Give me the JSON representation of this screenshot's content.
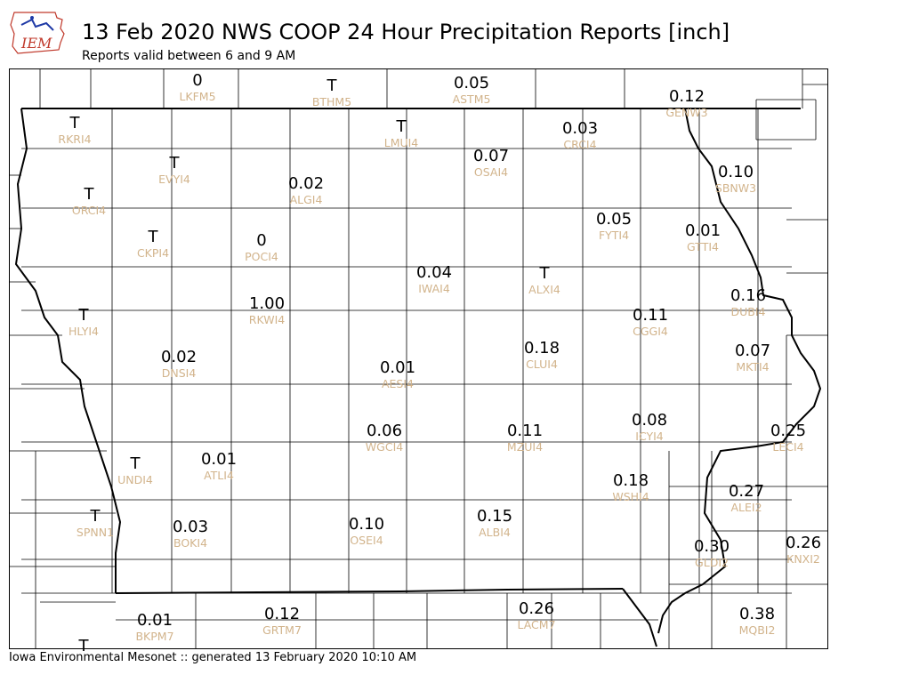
{
  "header": {
    "title": "13 Feb 2020 NWS COOP 24 Hour Precipitation Reports [inch]",
    "subtitle": "Reports valid between 6 and 9 AM",
    "logo_text": "IEM"
  },
  "footer": {
    "text": "Iowa Environmental Mesonet :: generated 13 February 2020 10:10 AM"
  },
  "colors": {
    "station_label": "#d2b48c",
    "value_text": "#000000",
    "state_border": "#000000",
    "county_lines": "#000000",
    "logo_red": "#c0392b",
    "logo_blue": "#1f3aa6"
  },
  "stations": [
    {
      "value": "0",
      "id": "LKFM5"
    },
    {
      "value": "T",
      "id": "BTHM5"
    },
    {
      "value": "0.05",
      "id": "ASTM5"
    },
    {
      "value": "0.12",
      "id": "GENW3"
    },
    {
      "value": "T",
      "id": "RKRI4"
    },
    {
      "value": "T",
      "id": "LMUI4"
    },
    {
      "value": "0.07",
      "id": "OSAI4"
    },
    {
      "value": "0.03",
      "id": "CRCI4"
    },
    {
      "value": "T",
      "id": "EVYI4"
    },
    {
      "value": "0.02",
      "id": "ALGI4"
    },
    {
      "value": "0.10",
      "id": "SBNW3"
    },
    {
      "value": "T",
      "id": "ORCI4"
    },
    {
      "value": "0.05",
      "id": "FYTI4"
    },
    {
      "value": "0.01",
      "id": "GTTI4"
    },
    {
      "value": "T",
      "id": "CKPI4"
    },
    {
      "value": "0",
      "id": "POCI4"
    },
    {
      "value": "0.04",
      "id": "IWAI4"
    },
    {
      "value": "T",
      "id": "ALXI4"
    },
    {
      "value": "1.00",
      "id": "RKWI4"
    },
    {
      "value": "0.16",
      "id": "DUBI4"
    },
    {
      "value": "T",
      "id": "HLYI4"
    },
    {
      "value": "0.11",
      "id": "CGGI4"
    },
    {
      "value": "0.18",
      "id": "CLUI4"
    },
    {
      "value": "0.02",
      "id": "DNSI4"
    },
    {
      "value": "0.07",
      "id": "MKTI4"
    },
    {
      "value": "0.01",
      "id": "AESI4"
    },
    {
      "value": "0.08",
      "id": "ICYI4"
    },
    {
      "value": "0.06",
      "id": "WGCI4"
    },
    {
      "value": "0.11",
      "id": "MZUI4"
    },
    {
      "value": "0.25",
      "id": "LECI4"
    },
    {
      "value": "0.01",
      "id": "ATLI4"
    },
    {
      "value": "T",
      "id": "UNDI4"
    },
    {
      "value": "0.18",
      "id": "WSHI4"
    },
    {
      "value": "0.27",
      "id": "ALEI2"
    },
    {
      "value": "T",
      "id": "SPNN1"
    },
    {
      "value": "0.15",
      "id": "ALBI4"
    },
    {
      "value": "0.10",
      "id": "OSEI4"
    },
    {
      "value": "0.03",
      "id": "BOKI4"
    },
    {
      "value": "0.30",
      "id": "GLDI2"
    },
    {
      "value": "0.26",
      "id": "KNXI2"
    },
    {
      "value": "0.12",
      "id": "GRTM7"
    },
    {
      "value": "0.26",
      "id": "LACM7"
    },
    {
      "value": "0.01",
      "id": "BKPM7"
    },
    {
      "value": "0.38",
      "id": "MQBI2"
    },
    {
      "value": "T",
      "id": ""
    }
  ]
}
